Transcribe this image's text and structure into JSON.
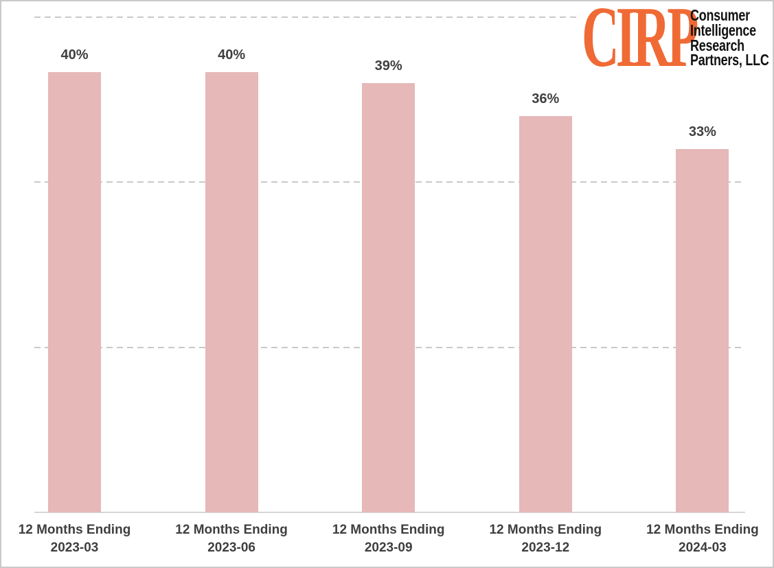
{
  "logo": {
    "acronym": "CIRP",
    "org_lines": [
      "Consumer",
      "Intelligence",
      "Research",
      "Partners, LLC"
    ],
    "acronym_color": "#F06A35",
    "org_text_color": "#121212"
  },
  "chart_data": {
    "type": "bar",
    "title": "",
    "xlabel": "",
    "ylabel": "",
    "categories": [
      {
        "line1": "12 Months Ending",
        "line2": "2023-03"
      },
      {
        "line1": "12 Months Ending",
        "line2": "2023-06"
      },
      {
        "line1": "12 Months Ending",
        "line2": "2023-09"
      },
      {
        "line1": "12 Months Ending",
        "line2": "2023-12"
      },
      {
        "line1": "12 Months Ending",
        "line2": "2024-03"
      }
    ],
    "values": [
      40,
      40,
      39,
      36,
      33
    ],
    "data_labels": [
      "40%",
      "40%",
      "39%",
      "36%",
      "33%"
    ],
    "ylim": [
      0,
      45
    ],
    "gridlines": {
      "values": [
        15,
        30,
        45
      ],
      "style": "dashed"
    },
    "legend": "none",
    "colors": {
      "bar": "#E6B8B8",
      "data_label": "#3F3F3F",
      "axis_label": "#3F3F3F",
      "gridline": "#C9C9C9",
      "axis_line": "#D6D6D6",
      "background": "#FFFFFF",
      "border": "#C9C9C9"
    }
  }
}
